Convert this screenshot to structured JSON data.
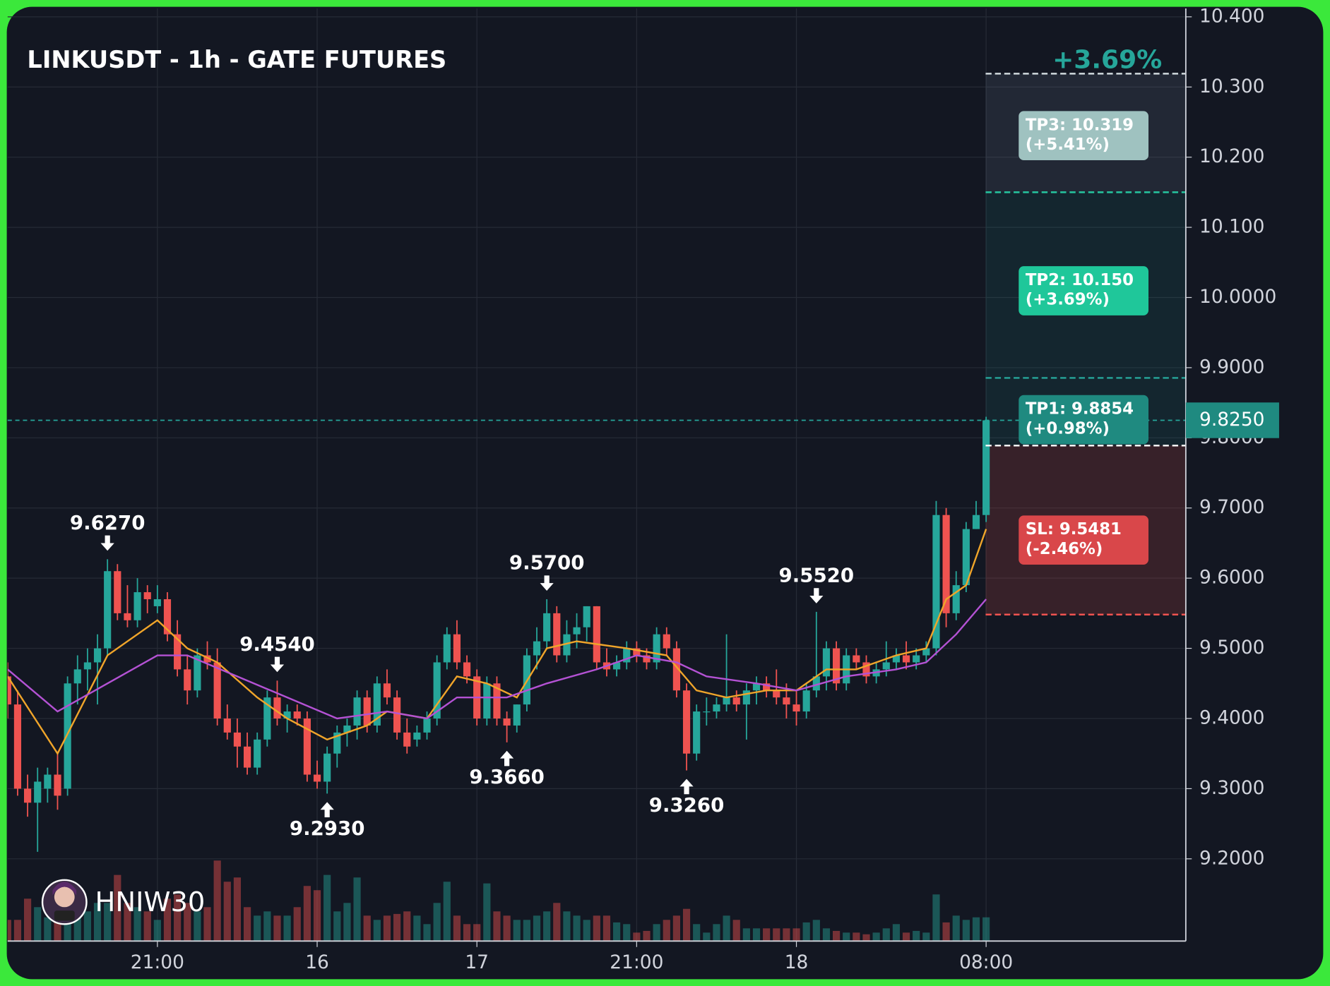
{
  "chart_data": {
    "type": "candlestick",
    "title": "LINKUSDT - 1h - GATE FUTURES",
    "up_color": "#26a69a",
    "down_color": "#ef5350",
    "candles": [
      [
        9.46,
        9.48,
        9.4,
        9.42,
        25
      ],
      [
        9.42,
        9.44,
        9.29,
        9.3,
        25
      ],
      [
        9.3,
        9.32,
        9.26,
        9.28,
        50
      ],
      [
        9.28,
        9.33,
        9.21,
        9.31,
        40
      ],
      [
        9.3,
        9.33,
        9.28,
        9.32,
        28
      ],
      [
        9.32,
        9.35,
        9.27,
        9.29,
        30
      ],
      [
        9.3,
        9.46,
        9.29,
        9.45,
        55
      ],
      [
        9.45,
        9.49,
        9.42,
        9.47,
        40
      ],
      [
        9.47,
        9.5,
        9.44,
        9.48,
        35
      ],
      [
        9.48,
        9.52,
        9.42,
        9.5,
        45
      ],
      [
        9.5,
        9.627,
        9.49,
        9.61,
        45
      ],
      [
        9.61,
        9.62,
        9.54,
        9.55,
        78
      ],
      [
        9.55,
        9.59,
        9.53,
        9.54,
        45
      ],
      [
        9.54,
        9.6,
        9.53,
        9.58,
        40
      ],
      [
        9.58,
        9.59,
        9.55,
        9.57,
        35
      ],
      [
        9.56,
        9.59,
        9.55,
        9.57,
        25
      ],
      [
        9.57,
        9.58,
        9.51,
        9.52,
        50
      ],
      [
        9.52,
        9.54,
        9.46,
        9.47,
        55
      ],
      [
        9.47,
        9.49,
        9.42,
        9.44,
        45
      ],
      [
        9.44,
        9.5,
        9.43,
        9.49,
        35
      ],
      [
        9.49,
        9.51,
        9.47,
        9.48,
        40
      ],
      [
        9.48,
        9.5,
        9.39,
        9.4,
        95
      ],
      [
        9.4,
        9.42,
        9.37,
        9.38,
        70
      ],
      [
        9.38,
        9.4,
        9.33,
        9.36,
        75
      ],
      [
        9.36,
        9.38,
        9.32,
        9.33,
        40
      ],
      [
        9.33,
        9.38,
        9.32,
        9.37,
        30
      ],
      [
        9.37,
        9.44,
        9.36,
        9.43,
        35
      ],
      [
        9.43,
        9.454,
        9.39,
        9.4,
        30
      ],
      [
        9.4,
        9.42,
        9.38,
        9.41,
        30
      ],
      [
        9.41,
        9.42,
        9.39,
        9.4,
        40
      ],
      [
        9.4,
        9.41,
        9.31,
        9.32,
        65
      ],
      [
        9.32,
        9.34,
        9.3,
        9.31,
        60
      ],
      [
        9.31,
        9.36,
        9.293,
        9.35,
        78
      ],
      [
        9.35,
        9.39,
        9.33,
        9.38,
        35
      ],
      [
        9.38,
        9.4,
        9.36,
        9.39,
        45
      ],
      [
        9.39,
        9.44,
        9.37,
        9.43,
        75
      ],
      [
        9.43,
        9.44,
        9.38,
        9.39,
        30
      ],
      [
        9.39,
        9.46,
        9.38,
        9.45,
        25
      ],
      [
        9.45,
        9.47,
        9.42,
        9.43,
        30
      ],
      [
        9.43,
        9.44,
        9.37,
        9.38,
        32
      ],
      [
        9.38,
        9.4,
        9.35,
        9.36,
        35
      ],
      [
        9.37,
        9.39,
        9.36,
        9.38,
        30
      ],
      [
        9.38,
        9.41,
        9.37,
        9.4,
        20
      ],
      [
        9.4,
        9.49,
        9.39,
        9.48,
        45
      ],
      [
        9.48,
        9.53,
        9.47,
        9.52,
        70
      ],
      [
        9.52,
        9.54,
        9.47,
        9.48,
        30
      ],
      [
        9.48,
        9.49,
        9.45,
        9.46,
        20
      ],
      [
        9.46,
        9.47,
        9.39,
        9.4,
        20
      ],
      [
        9.4,
        9.46,
        9.39,
        9.45,
        68
      ],
      [
        9.45,
        9.46,
        9.39,
        9.4,
        35
      ],
      [
        9.4,
        9.41,
        9.366,
        9.39,
        30
      ],
      [
        9.39,
        9.42,
        9.38,
        9.42,
        25
      ],
      [
        9.42,
        9.5,
        9.41,
        9.49,
        25
      ],
      [
        9.49,
        9.53,
        9.47,
        9.51,
        30
      ],
      [
        9.51,
        9.57,
        9.5,
        9.55,
        35
      ],
      [
        9.55,
        9.56,
        9.48,
        9.49,
        45
      ],
      [
        9.49,
        9.54,
        9.48,
        9.52,
        35
      ],
      [
        9.52,
        9.55,
        9.5,
        9.53,
        30
      ],
      [
        9.53,
        9.56,
        9.51,
        9.56,
        25
      ],
      [
        9.56,
        9.56,
        9.47,
        9.48,
        30
      ],
      [
        9.48,
        9.5,
        9.46,
        9.47,
        30
      ],
      [
        9.47,
        9.49,
        9.46,
        9.48,
        22
      ],
      [
        9.48,
        9.51,
        9.47,
        9.5,
        20
      ],
      [
        9.5,
        9.51,
        9.48,
        9.49,
        10
      ],
      [
        9.49,
        9.5,
        9.47,
        9.48,
        12
      ],
      [
        9.48,
        9.53,
        9.47,
        9.52,
        20
      ],
      [
        9.52,
        9.53,
        9.49,
        9.5,
        25
      ],
      [
        9.5,
        9.51,
        9.43,
        9.44,
        30
      ],
      [
        9.44,
        9.45,
        9.326,
        9.35,
        38
      ],
      [
        9.35,
        9.42,
        9.34,
        9.41,
        20
      ],
      [
        9.41,
        9.43,
        9.39,
        9.41,
        10
      ],
      [
        9.41,
        9.43,
        9.4,
        9.42,
        20
      ],
      [
        9.42,
        9.52,
        9.41,
        9.43,
        30
      ],
      [
        9.43,
        9.44,
        9.41,
        9.42,
        25
      ],
      [
        9.42,
        9.45,
        9.37,
        9.44,
        15
      ],
      [
        9.44,
        9.46,
        9.42,
        9.45,
        15
      ],
      [
        9.45,
        9.46,
        9.43,
        9.44,
        15
      ],
      [
        9.44,
        9.47,
        9.42,
        9.43,
        15
      ],
      [
        9.43,
        9.45,
        9.4,
        9.42,
        15
      ],
      [
        9.42,
        9.44,
        9.39,
        9.41,
        15
      ],
      [
        9.41,
        9.45,
        9.4,
        9.44,
        22
      ],
      [
        9.44,
        9.552,
        9.43,
        9.46,
        25
      ],
      [
        9.46,
        9.51,
        9.44,
        9.5,
        15
      ],
      [
        9.5,
        9.51,
        9.44,
        9.45,
        12
      ],
      [
        9.45,
        9.5,
        9.44,
        9.49,
        10
      ],
      [
        9.49,
        9.5,
        9.47,
        9.48,
        10
      ],
      [
        9.48,
        9.49,
        9.45,
        9.46,
        8
      ],
      [
        9.46,
        9.48,
        9.45,
        9.47,
        10
      ],
      [
        9.47,
        9.51,
        9.46,
        9.48,
        15
      ],
      [
        9.48,
        9.5,
        9.47,
        9.49,
        20
      ],
      [
        9.49,
        9.51,
        9.47,
        9.48,
        10
      ],
      [
        9.48,
        9.5,
        9.47,
        9.49,
        12
      ],
      [
        9.49,
        9.51,
        9.48,
        9.5,
        10
      ],
      [
        9.5,
        9.71,
        9.49,
        9.69,
        55
      ],
      [
        9.69,
        9.7,
        9.53,
        9.55,
        22
      ],
      [
        9.55,
        9.61,
        9.54,
        9.59,
        30
      ],
      [
        9.59,
        9.68,
        9.58,
        9.67,
        25
      ],
      [
        9.67,
        9.71,
        9.67,
        9.69,
        28
      ],
      [
        9.69,
        9.83,
        9.68,
        9.825,
        28
      ]
    ],
    "averages": [
      {
        "color": "#f0a52a",
        "x": [
          0,
          5,
          10,
          15,
          18,
          21,
          25,
          28,
          32,
          36,
          38,
          42,
          45,
          48,
          51,
          54,
          57,
          62,
          66,
          69,
          72,
          76,
          79,
          82,
          85,
          89,
          92,
          94,
          96,
          98
        ],
        "values": [
          9.46,
          9.35,
          9.49,
          9.54,
          9.5,
          9.48,
          9.43,
          9.4,
          9.37,
          9.39,
          9.41,
          9.4,
          9.46,
          9.45,
          9.43,
          9.5,
          9.51,
          9.5,
          9.49,
          9.44,
          9.43,
          9.44,
          9.44,
          9.47,
          9.47,
          9.49,
          9.5,
          9.57,
          9.59,
          9.67
        ]
      },
      {
        "color": "#b452d4",
        "x": [
          0,
          5,
          10,
          15,
          18,
          23,
          28,
          33,
          38,
          42,
          45,
          50,
          54,
          59,
          63,
          67,
          70,
          75,
          79,
          84,
          89,
          92,
          95,
          98
        ],
        "values": [
          9.47,
          9.41,
          9.45,
          9.49,
          9.49,
          9.46,
          9.43,
          9.4,
          9.41,
          9.4,
          9.43,
          9.43,
          9.45,
          9.47,
          9.49,
          9.48,
          9.46,
          9.45,
          9.44,
          9.46,
          9.47,
          9.48,
          9.52,
          9.57
        ]
      }
    ],
    "annotations": [
      {
        "label": "9.6270",
        "x": 10,
        "value": 9.627,
        "side": "above"
      },
      {
        "label": "9.4540",
        "x": 27,
        "value": 9.454,
        "side": "above"
      },
      {
        "label": "9.2930",
        "x": 32,
        "value": 9.293,
        "side": "below"
      },
      {
        "label": "9.3660",
        "x": 50,
        "value": 9.366,
        "side": "below"
      },
      {
        "label": "9.5700",
        "x": 54,
        "value": 9.57,
        "side": "above"
      },
      {
        "label": "9.3260",
        "x": 68,
        "value": 9.326,
        "side": "below"
      },
      {
        "label": "9.5520",
        "x": 81,
        "value": 9.552,
        "side": "above"
      }
    ],
    "levels": [
      {
        "label": "TP3: 10.319",
        "change": "(+5.41%)",
        "value": 10.319,
        "color": "#9fc2c0",
        "line": "#cfd8dc"
      },
      {
        "label": "TP2: 10.150",
        "change": "(+3.69%)",
        "value": 10.15,
        "color": "#1fc79a",
        "line": "#26c6a0"
      },
      {
        "label": "TP1: 9.8854",
        "change": "(+0.98%)",
        "value": 9.8854,
        "color": "#1f8a80",
        "line": "#26a69a"
      },
      {
        "label": "SL: 9.5481",
        "change": "(-2.46%)",
        "value": 9.5481,
        "color": "#d9474a",
        "line": "#ef5350"
      }
    ],
    "entry": 9.789,
    "target_change": "+3.69%",
    "last_price": {
      "value": 9.825,
      "label": "9.8250"
    },
    "watermark": "HNIW30",
    "xlim": [
      0,
      118
    ],
    "ylim": [
      9.0828,
      10.4119
    ],
    "yticks": [
      {
        "value": 10.4,
        "label": "10.400"
      },
      {
        "value": 10.3,
        "label": "10.300"
      },
      {
        "value": 10.2,
        "label": "10.200"
      },
      {
        "value": 10.1,
        "label": "10.100"
      },
      {
        "value": 10.0,
        "label": "10.0000"
      },
      {
        "value": 9.9,
        "label": "9.9000"
      },
      {
        "value": 9.8,
        "label": "9.8000"
      },
      {
        "value": 9.7,
        "label": "9.7000"
      },
      {
        "value": 9.6,
        "label": "9.6000"
      },
      {
        "value": 9.5,
        "label": "9.5000"
      },
      {
        "value": 9.4,
        "label": "9.4000"
      },
      {
        "value": 9.3,
        "label": "9.3000"
      },
      {
        "value": 9.2,
        "label": "9.2000"
      }
    ],
    "xticks": [
      {
        "value": 15,
        "label": "21:00"
      },
      {
        "value": 31,
        "label": "16"
      },
      {
        "value": 47,
        "label": "17"
      },
      {
        "value": 63,
        "label": "21:00"
      },
      {
        "value": 79,
        "label": "18"
      },
      {
        "value": 98,
        "label": "08:00"
      }
    ],
    "grid": true
  }
}
